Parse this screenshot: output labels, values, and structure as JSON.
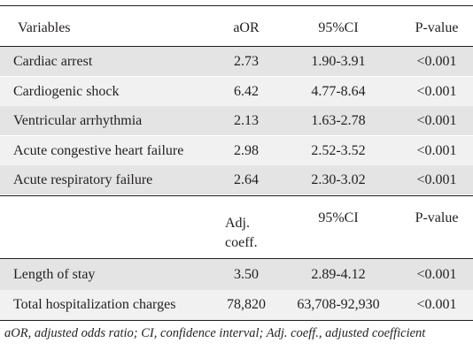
{
  "header1": {
    "variables": "Variables",
    "aor": "aOR",
    "ci": "95%CI",
    "p": "P-value"
  },
  "rows1": [
    {
      "label": "Cardiac arrest",
      "aor": "2.73",
      "ci": "1.90-3.91",
      "p": "<0.001"
    },
    {
      "label": "Cardiogenic shock",
      "aor": "6.42",
      "ci": "4.77-8.64",
      "p": "<0.001"
    },
    {
      "label": "Ventricular arrhythmia",
      "aor": "2.13",
      "ci": "1.63-2.78",
      "p": "<0.001"
    },
    {
      "label": "Acute congestive heart failure",
      "aor": "2.98",
      "ci": "2.52-3.52",
      "p": "<0.001"
    },
    {
      "label": "Acute respiratory failure",
      "aor": "2.64",
      "ci": "2.30-3.02",
      "p": "<0.001"
    }
  ],
  "header2": {
    "coeff_line1": "Adj.",
    "coeff_line2": "coeff.",
    "ci": "95%CI",
    "p": "P-value"
  },
  "rows2": [
    {
      "label": "Length of stay",
      "coeff": "3.50",
      "ci": "2.89-4.12",
      "p": "<0.001"
    },
    {
      "label": "Total hospitalization charges",
      "coeff": "78,820",
      "ci": "63,708-92,930",
      "p": "<0.001"
    }
  ],
  "footnote": "aOR, adjusted odds ratio; CI, confidence interval; Adj. coeff., adjusted coefficient"
}
